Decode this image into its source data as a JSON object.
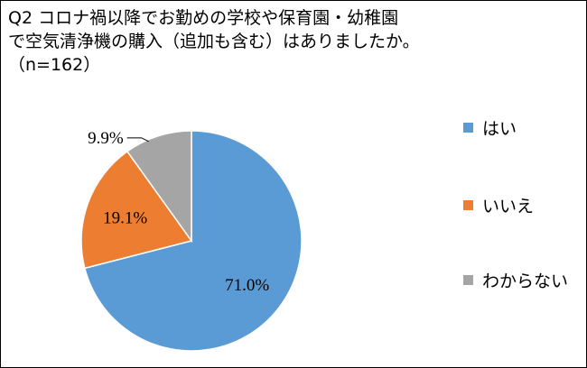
{
  "chart_data": {
    "type": "pie",
    "title_lines": [
      "Q2 コロナ禍以降でお勤めの学校や保育園・幼稚園",
      "で空気清浄機の購入（追加も含む）はありましたか。",
      "（n=162）"
    ],
    "categories": [
      "はい",
      "いいえ",
      "わからない"
    ],
    "values": [
      71.0,
      19.1,
      9.9
    ],
    "value_labels": [
      "71.0%",
      "19.1%",
      "9.9%"
    ],
    "colors": [
      "#5B9BD5",
      "#ED7D31",
      "#A5A5A5"
    ],
    "legend_position": "right"
  }
}
